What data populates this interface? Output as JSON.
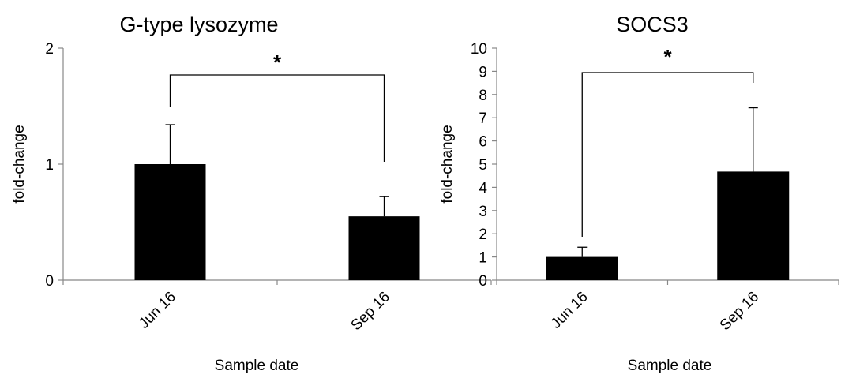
{
  "chart_data": [
    {
      "type": "bar",
      "title": "G-type lysozyme",
      "xlabel": "Sample date",
      "ylabel": "fold-change",
      "ylim": [
        0,
        2
      ],
      "yticks": [
        0,
        1,
        2
      ],
      "categories": [
        "Jun 16",
        "Sep 16"
      ],
      "values": [
        1.0,
        0.55
      ],
      "error_plus": [
        0.34,
        0.17
      ],
      "significance": {
        "from": 0,
        "to": 1,
        "label": "*"
      },
      "bar_color": "#000000",
      "grid": false
    },
    {
      "type": "bar",
      "title": "SOCS3",
      "xlabel": "Sample date",
      "ylabel": "fold-change",
      "ylim": [
        0,
        10
      ],
      "yticks": [
        0,
        1,
        2,
        3,
        4,
        5,
        6,
        7,
        8,
        9,
        10
      ],
      "categories": [
        "Jun 16",
        "Sep 16"
      ],
      "values": [
        1.0,
        4.68
      ],
      "error_plus": [
        0.42,
        2.75
      ],
      "significance": {
        "from": 0,
        "to": 1,
        "label": "*"
      },
      "bar_color": "#000000",
      "grid": false
    }
  ]
}
